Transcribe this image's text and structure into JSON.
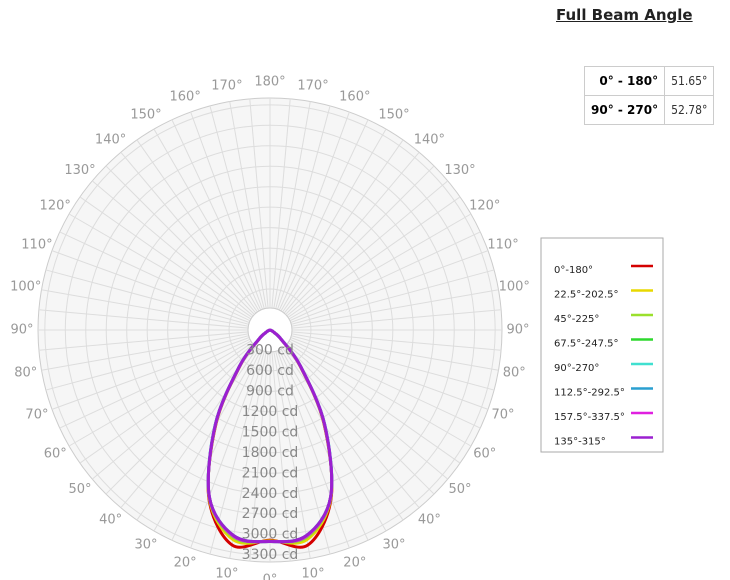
{
  "chart_data": {
    "type": "polar",
    "x": [
      -90,
      -80,
      -70,
      -60,
      -50,
      -40,
      -30,
      -20,
      -10,
      0,
      10,
      20,
      30,
      40,
      50,
      60,
      70,
      80,
      90
    ],
    "series": [
      {
        "name": "0°-180°",
        "color": "#d40000",
        "values": [
          0,
          4,
          15,
          60,
          210,
          680,
          1580,
          2620,
          3200,
          3080,
          3200,
          2620,
          1580,
          680,
          210,
          60,
          15,
          4,
          0
        ]
      },
      {
        "name": "22.5°-202.5°",
        "color": "#e8d800",
        "values": [
          0,
          4,
          15,
          60,
          215,
          690,
          1590,
          2610,
          3120,
          3090,
          3120,
          2610,
          1590,
          690,
          215,
          60,
          15,
          4,
          0
        ]
      },
      {
        "name": "45°-225°",
        "color": "#9be02c",
        "values": [
          0,
          4,
          15,
          60,
          218,
          695,
          1595,
          2605,
          3090,
          3095,
          3090,
          2605,
          1595,
          695,
          218,
          60,
          15,
          4,
          0
        ]
      },
      {
        "name": "67.5°-247.5°",
        "color": "#2ed82e",
        "values": [
          0,
          4,
          15,
          60,
          220,
          700,
          1600,
          2600,
          3070,
          3100,
          3070,
          2600,
          1600,
          700,
          220,
          60,
          15,
          4,
          0
        ]
      },
      {
        "name": "90°-270°",
        "color": "#40e0d0",
        "values": [
          0,
          4,
          15,
          60,
          222,
          705,
          1610,
          2600,
          3060,
          3100,
          3060,
          2600,
          1610,
          705,
          222,
          60,
          15,
          4,
          0
        ]
      },
      {
        "name": "112.5°-292.5°",
        "color": "#2a9fd0",
        "values": [
          0,
          4,
          15,
          60,
          220,
          700,
          1605,
          2600,
          3065,
          3100,
          3065,
          2600,
          1605,
          700,
          220,
          60,
          15,
          4,
          0
        ]
      },
      {
        "name": "157.5°-337.5°",
        "color": "#e020e0",
        "values": [
          0,
          4,
          15,
          60,
          220,
          700,
          1600,
          2600,
          3070,
          3100,
          3070,
          2600,
          1600,
          700,
          220,
          60,
          15,
          4,
          0
        ]
      },
      {
        "name": "135°-315°",
        "color": "#9b20d0",
        "values": [
          0,
          4,
          15,
          60,
          220,
          700,
          1600,
          2600,
          3060,
          3100,
          3060,
          2600,
          1600,
          700,
          220,
          60,
          15,
          4,
          0
        ]
      }
    ],
    "rlim": [
      0,
      3400
    ],
    "rticks": [
      {
        "value": 300,
        "label": "300 cd"
      },
      {
        "value": 600,
        "label": "600 cd"
      },
      {
        "value": 900,
        "label": "900 cd"
      },
      {
        "value": 1200,
        "label": "1200 cd"
      },
      {
        "value": 1500,
        "label": "1500 cd"
      },
      {
        "value": 1800,
        "label": "1800 cd"
      },
      {
        "value": 2100,
        "label": "2100 cd"
      },
      {
        "value": 2400,
        "label": "2400 cd"
      },
      {
        "value": 2700,
        "label": "2700 cd"
      },
      {
        "value": 3000,
        "label": "3000 cd"
      },
      {
        "value": 3300,
        "label": "3300 cd"
      }
    ],
    "thetaticks": [
      {
        "value": 0,
        "label": "0°"
      },
      {
        "value": 10,
        "label": "10°"
      },
      {
        "value": 20,
        "label": "20°"
      },
      {
        "value": 30,
        "label": "30°"
      },
      {
        "value": 40,
        "label": "40°"
      },
      {
        "value": 50,
        "label": "50°"
      },
      {
        "value": 60,
        "label": "60°"
      },
      {
        "value": 70,
        "label": "70°"
      },
      {
        "value": 80,
        "label": "80°"
      },
      {
        "value": 90,
        "label": "90°"
      },
      {
        "value": 100,
        "label": "100°"
      },
      {
        "value": 110,
        "label": "110°"
      },
      {
        "value": 120,
        "label": "120°"
      },
      {
        "value": 130,
        "label": "130°"
      },
      {
        "value": 140,
        "label": "140°"
      },
      {
        "value": 150,
        "label": "150°"
      },
      {
        "value": 160,
        "label": "160°"
      },
      {
        "value": 170,
        "label": "170°"
      },
      {
        "value": 180,
        "label": "180°"
      }
    ],
    "grid": true
  },
  "beam_angle": {
    "title": "Full Beam Angle",
    "rows": [
      [
        "0° - 180°",
        "51.65°"
      ],
      [
        "90° - 270°",
        "52.78°"
      ]
    ]
  }
}
